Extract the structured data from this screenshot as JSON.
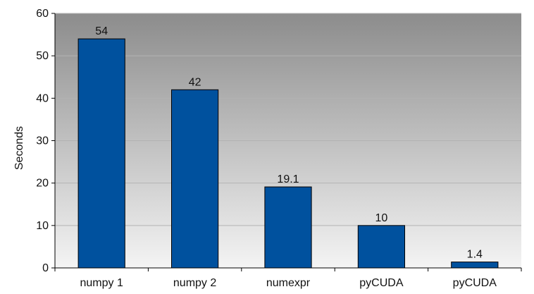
{
  "chart_data": {
    "type": "bar",
    "title": "",
    "xlabel": "",
    "ylabel": "Seconds",
    "categories": [
      "numpy 1",
      "numpy 2",
      "numexpr",
      "pyCUDA",
      "pyCUDA"
    ],
    "values": [
      54,
      42,
      19.1,
      10,
      1.4
    ],
    "value_labels": [
      "54",
      "42",
      "19.1",
      "10",
      "1.4"
    ],
    "ylim": [
      0,
      60
    ],
    "yticks": [
      0,
      10,
      20,
      30,
      40,
      50,
      60
    ],
    "grid": true,
    "legend": "none",
    "colors": {
      "bar": "#00519e",
      "bar_border": "#000000",
      "grid": "#b3b3b3",
      "background_top": "#8c8c8c",
      "background_bottom": "#f4f4f4"
    }
  }
}
